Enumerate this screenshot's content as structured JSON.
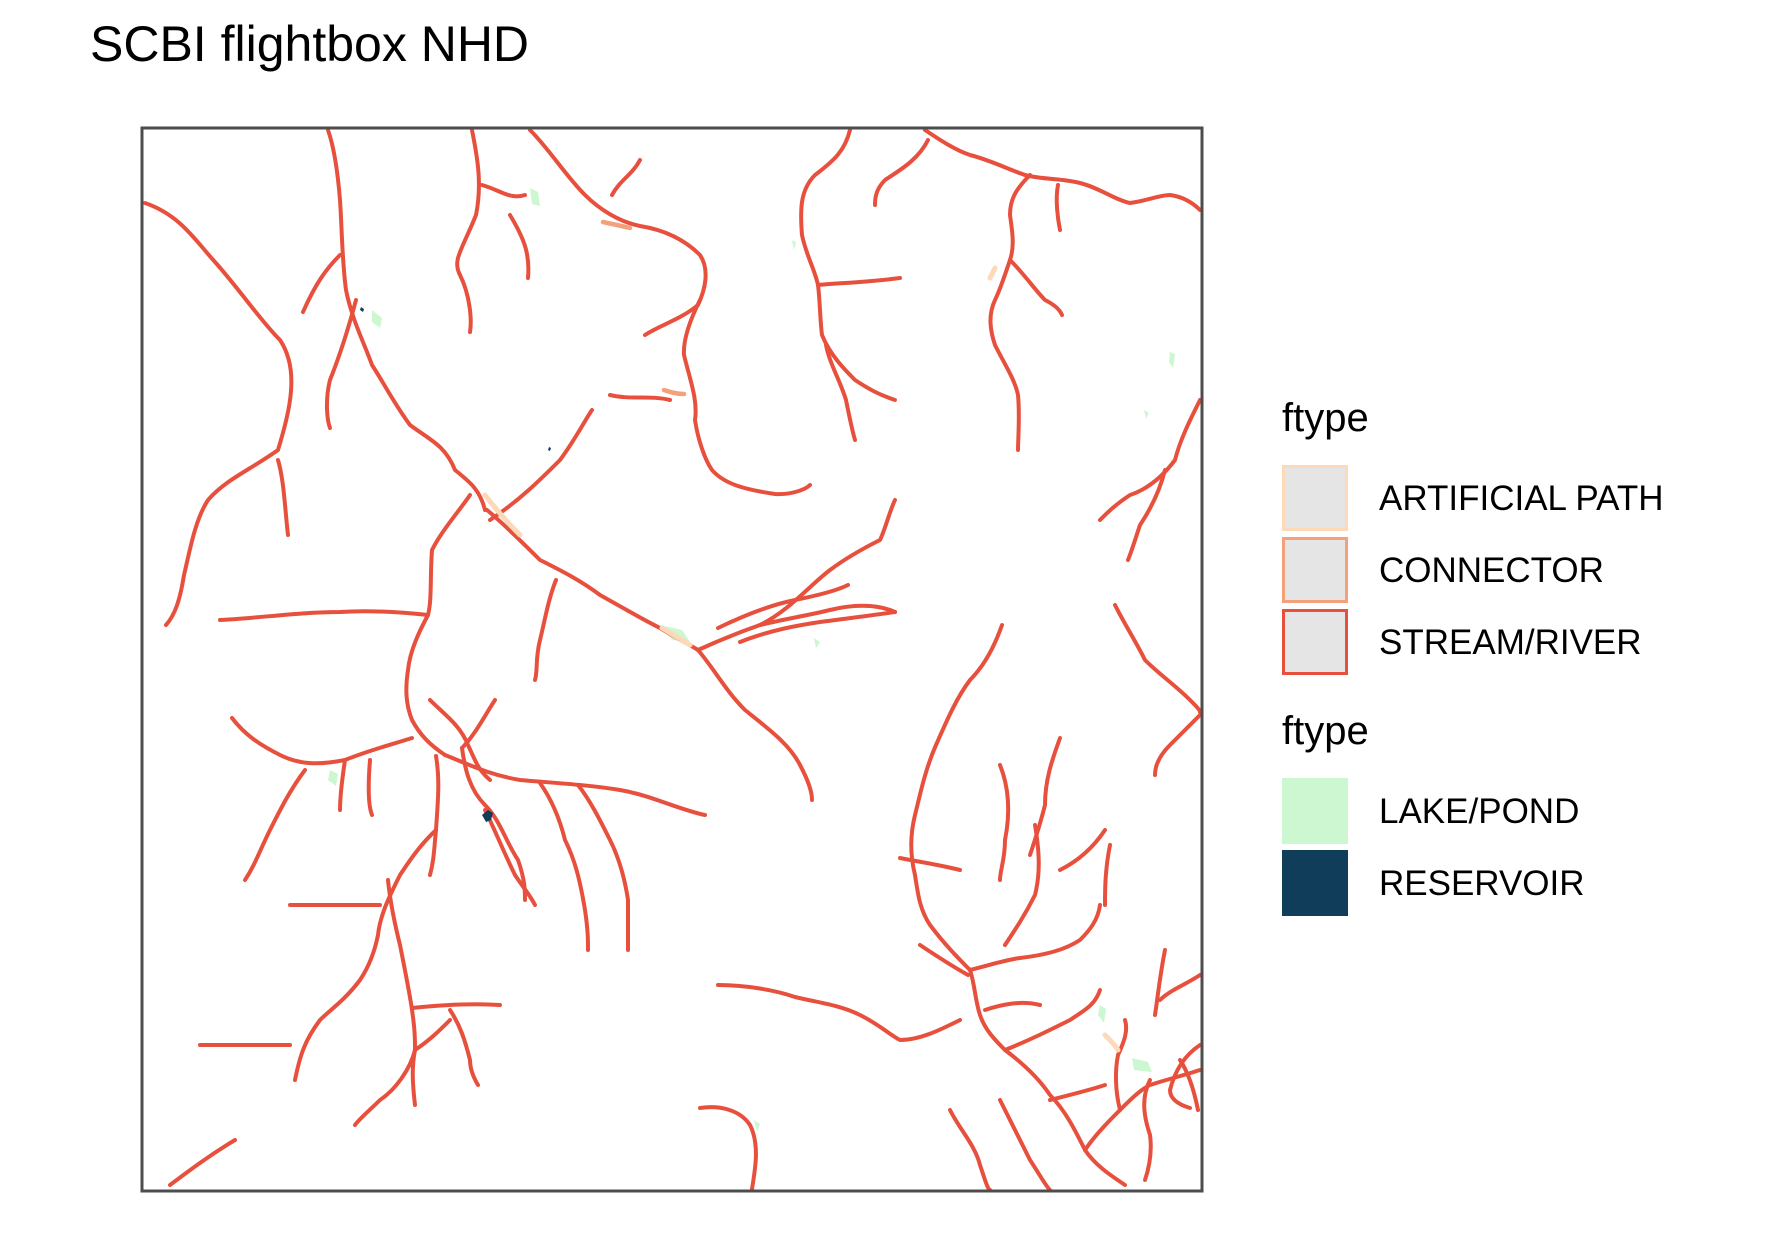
{
  "title": "SCBI flightbox NHD",
  "colors": {
    "artificial_path": "#fcd9b8",
    "connector": "#f4a07a",
    "stream_river": "#e8503e",
    "lake_pond": "#ccf7d0",
    "reservoir": "#0f3d5a",
    "legend_fill": "#e5e5e5",
    "frame": "#4d4d4d"
  },
  "legend": {
    "flowline_title": "ftype",
    "flowline_items": [
      {
        "label": "ARTIFICIAL PATH",
        "color_key": "artificial_path"
      },
      {
        "label": "CONNECTOR",
        "color_key": "connector"
      },
      {
        "label": "STREAM/RIVER",
        "color_key": "stream_river"
      }
    ],
    "waterbody_title": "ftype",
    "waterbody_items": [
      {
        "label": "LAKE/POND",
        "color_key": "lake_pond"
      },
      {
        "label": "RESERVOIR",
        "color_key": "reservoir"
      }
    ]
  }
}
